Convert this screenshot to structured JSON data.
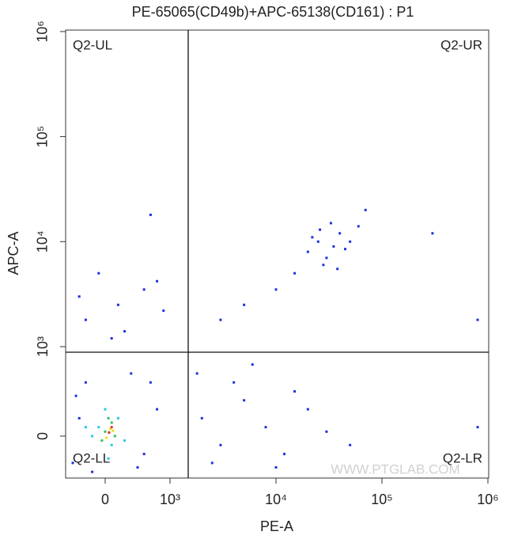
{
  "chart_data": {
    "type": "scatter",
    "title": "PE-65065(CD49b)+APC-65138(CD161) : P1",
    "x_label": "PE-A",
    "y_label": "APC-A",
    "xlim": [
      -610,
      1000000
    ],
    "ylim": [
      -470,
      1000000
    ],
    "xticks": [
      0,
      {
        "value": 1000,
        "label": "10³"
      },
      {
        "value": 10000,
        "label": "10⁴"
      },
      {
        "value": 100000,
        "label": "10⁵"
      },
      {
        "value": 1000000,
        "label": "10⁶"
      }
    ],
    "yticks": [
      0,
      {
        "value": 1000,
        "label": "10³"
      },
      {
        "value": 10000,
        "label": "10⁴"
      },
      {
        "value": 100000,
        "label": "10⁵"
      },
      {
        "value": 1000000,
        "label": "10⁶"
      }
    ],
    "gates": {
      "x": 1485,
      "y": 938
    },
    "quadrant_labels": [
      "Q2-UL",
      "Q2-UR",
      "Q2-LL",
      "Q2-LR"
    ],
    "watermark": "WWW.PTGLAB.COM",
    "series": [
      {
        "color": "#1f2fe0",
        "x": [
          -500,
          -400,
          -300,
          400,
          600,
          800,
          -200,
          500,
          700,
          -450,
          -300,
          200,
          600,
          -100,
          900,
          300,
          700,
          -400,
          100,
          800,
          20000,
          25000,
          30000,
          35000,
          40000,
          28000,
          45000,
          22000,
          33000,
          50000,
          60000,
          15000,
          10000,
          5000,
          3000,
          70000,
          38000,
          26000,
          300000,
          800000,
          2000,
          3000,
          5000,
          8000,
          12000,
          20000,
          4000,
          2500,
          30000,
          6000,
          15000,
          50000,
          1800,
          10000,
          800000
        ],
        "y": [
          -300,
          200,
          600,
          700,
          -200,
          300,
          -400,
          -350,
          600,
          450,
          1800,
          2500,
          3500,
          5000,
          2200,
          1400,
          18000,
          3000,
          1200,
          4200,
          8000,
          10000,
          7000,
          9000,
          12000,
          6000,
          8500,
          11000,
          15000,
          10000,
          14000,
          5000,
          3500,
          2500,
          1800,
          20000,
          5500,
          13000,
          12000,
          1800,
          200,
          -100,
          400,
          100,
          -200,
          300,
          600,
          -300,
          50,
          800,
          500,
          -100,
          700,
          -350,
          100
        ]
      },
      {
        "color": "#22c8e8",
        "x": [
          -100,
          100,
          200,
          -200,
          0,
          300,
          50,
          -300
        ],
        "y": [
          100,
          -100,
          200,
          0,
          300,
          -50,
          -250,
          100
        ]
      },
      {
        "color": "#30c060",
        "x": [
          0,
          100,
          -50,
          150,
          50
        ],
        "y": [
          50,
          150,
          -50,
          0,
          200
        ]
      },
      {
        "color": "#e8e020",
        "x": [
          80,
          20,
          120
        ],
        "y": [
          80,
          -20,
          60
        ]
      },
      {
        "color": "#e03020",
        "x": [
          60,
          100
        ],
        "y": [
          40,
          100
        ]
      }
    ]
  }
}
